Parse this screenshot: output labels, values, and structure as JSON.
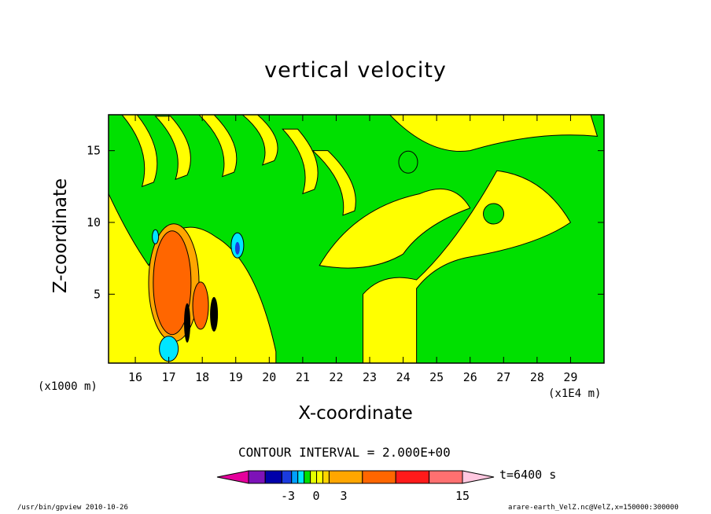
{
  "chart_data": {
    "type": "heatmap",
    "title": "vertical velocity",
    "xlabel": "X-coordinate",
    "ylabel": "Z-coordinate",
    "x_unit_note": "(x1E4 m)",
    "z_unit_note": "(x1000 m)",
    "xlim": [
      15.2,
      30.0
    ],
    "ylim": [
      0.2,
      17.5
    ],
    "x_ticks": [
      "16",
      "17",
      "18",
      "19",
      "20",
      "21",
      "22",
      "23",
      "24",
      "25",
      "26",
      "27",
      "28",
      "29"
    ],
    "y_ticks": [
      "5",
      "10",
      "15"
    ],
    "contour_interval": "CONTOUR INTERVAL = 2.000E+00",
    "time_label": "t=6400 s",
    "colorbar": {
      "tick_labels": [
        "-3",
        "0",
        "3",
        "15"
      ],
      "levels": [
        -7,
        -5,
        -3,
        -2,
        -1,
        0,
        1,
        2,
        3,
        5,
        7,
        9,
        11,
        13,
        15
      ],
      "colors": [
        "#e5009c",
        "#7d12b8",
        "#0000aa",
        "#1b3bde",
        "#00a0ff",
        "#00e6ff",
        "#00e000",
        "#e6ff00",
        "#ffff00",
        "#ffd400",
        "#ffa600",
        "#ff6600",
        "#ff1a1a",
        "#ff7070",
        "#ffbdbd",
        "#ffc8e0"
      ]
    },
    "colors": {
      "background_field": "#00e000",
      "positive_weak": "#ffff00",
      "positive_mid": "#ffa600",
      "positive_strong": "#ff6600",
      "negative_weak": "#00e6ff",
      "negative_strong": "#1b3bde"
    }
  },
  "footer": {
    "left": "/usr/bin/gpview  2010-10-26",
    "right": "arare-earth_VelZ.nc@VelZ,x=150000:300000"
  }
}
